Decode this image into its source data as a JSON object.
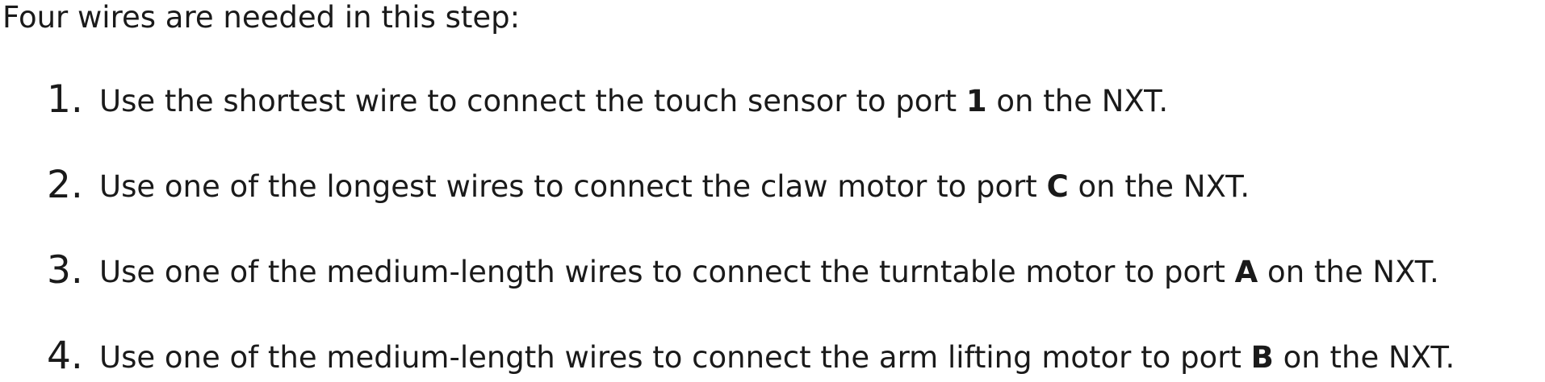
{
  "intro": "Four wires are needed in this step:",
  "steps": [
    {
      "number": "1.",
      "before": "Use the shortest wire to connect the touch sensor to port ",
      "port": "1",
      "after": " on the NXT."
    },
    {
      "number": "2.",
      "before": "Use one of the longest wires to connect the claw motor to port ",
      "port": "C",
      "after": " on the NXT."
    },
    {
      "number": "3.",
      "before": "Use one of the medium-length wires to connect the turntable motor to port ",
      "port": "A",
      "after": " on the NXT."
    },
    {
      "number": "4.",
      "before": "Use one of the medium-length wires to connect the arm lifting motor to port ",
      "port": "B",
      "after": " on the NXT."
    }
  ]
}
